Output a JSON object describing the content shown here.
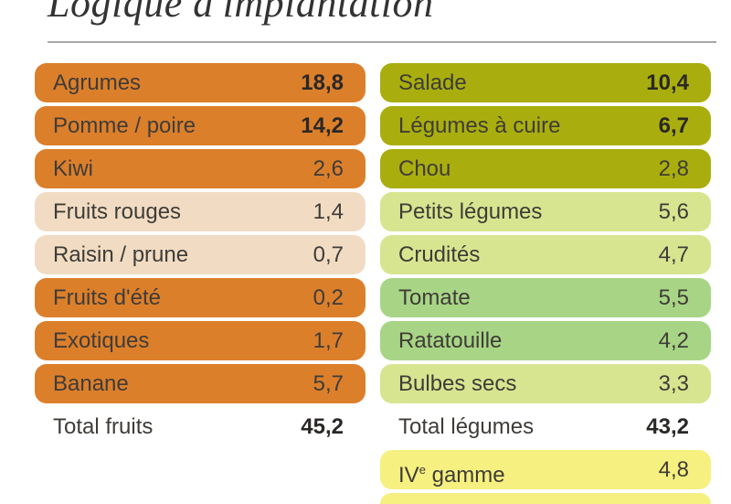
{
  "title": "Logique d'implantation",
  "fruits": [
    {
      "label": "Agrumes",
      "value": "18,8",
      "bold": true,
      "color": "#dc7f2b"
    },
    {
      "label": "Pomme / poire",
      "value": "14,2",
      "bold": true,
      "color": "#dc7f2b"
    },
    {
      "label": "Kiwi",
      "value": "2,6",
      "bold": false,
      "color": "#dc7f2b"
    },
    {
      "label": "Fruits rouges",
      "value": "1,4",
      "bold": false,
      "color": "#f1dcc3"
    },
    {
      "label": "Raisin / prune",
      "value": "0,7",
      "bold": false,
      "color": "#f1dcc3"
    },
    {
      "label": "Fruits d'été",
      "value": "0,2",
      "bold": false,
      "color": "#dc7f2b"
    },
    {
      "label": "Exotiques",
      "value": "1,7",
      "bold": false,
      "color": "#dc7f2b"
    },
    {
      "label": "Banane",
      "value": "5,7",
      "bold": false,
      "color": "#dc7f2b"
    }
  ],
  "fruits_total": {
    "label": "Total fruits",
    "value": "45,2"
  },
  "legumes": [
    {
      "label": "Salade",
      "value": "10,4",
      "bold": true,
      "color": "#a9ae0e"
    },
    {
      "label": "Légumes à cuire",
      "value": "6,7",
      "bold": true,
      "color": "#a9ae0e"
    },
    {
      "label": "Chou",
      "value": "2,8",
      "bold": false,
      "color": "#a9ae0e"
    },
    {
      "label": "Petits légumes",
      "value": "5,6",
      "bold": false,
      "color": "#d8e590"
    },
    {
      "label": "Crudités",
      "value": "4,7",
      "bold": false,
      "color": "#d8e590"
    },
    {
      "label": "Tomate",
      "value": "5,5",
      "bold": false,
      "color": "#a8d585"
    },
    {
      "label": "Ratatouille",
      "value": "4,2",
      "bold": false,
      "color": "#a8d585"
    },
    {
      "label": "Bulbes secs",
      "value": "3,3",
      "bold": false,
      "color": "#d8e590"
    }
  ],
  "legumes_total": {
    "label": "Total légumes",
    "value": "43,2"
  },
  "gamme": {
    "prefix": "IV",
    "sup": "e",
    "suffix": " gamme",
    "value": "4,8",
    "color": "#f6f080"
  },
  "clipped_row_color": "#f6f080",
  "chart_data": {
    "type": "table",
    "title": "Logique d'implantation",
    "tables": [
      {
        "categories": [
          "Agrumes",
          "Pomme / poire",
          "Kiwi",
          "Fruits rouges",
          "Raisin / prune",
          "Fruits d'été",
          "Exotiques",
          "Banane"
        ],
        "values": [
          18.8,
          14.2,
          2.6,
          1.4,
          0.7,
          0.2,
          1.7,
          5.7
        ],
        "total_label": "Total fruits",
        "total": 45.2
      },
      {
        "categories": [
          "Salade",
          "Légumes à cuire",
          "Chou",
          "Petits légumes",
          "Crudités",
          "Tomate",
          "Ratatouille",
          "Bulbes secs"
        ],
        "values": [
          10.4,
          6.7,
          2.8,
          5.6,
          4.7,
          5.5,
          4.2,
          3.3
        ],
        "total_label": "Total légumes",
        "total": 43.2
      },
      {
        "categories": [
          "IVe gamme"
        ],
        "values": [
          4.8
        ]
      }
    ]
  }
}
